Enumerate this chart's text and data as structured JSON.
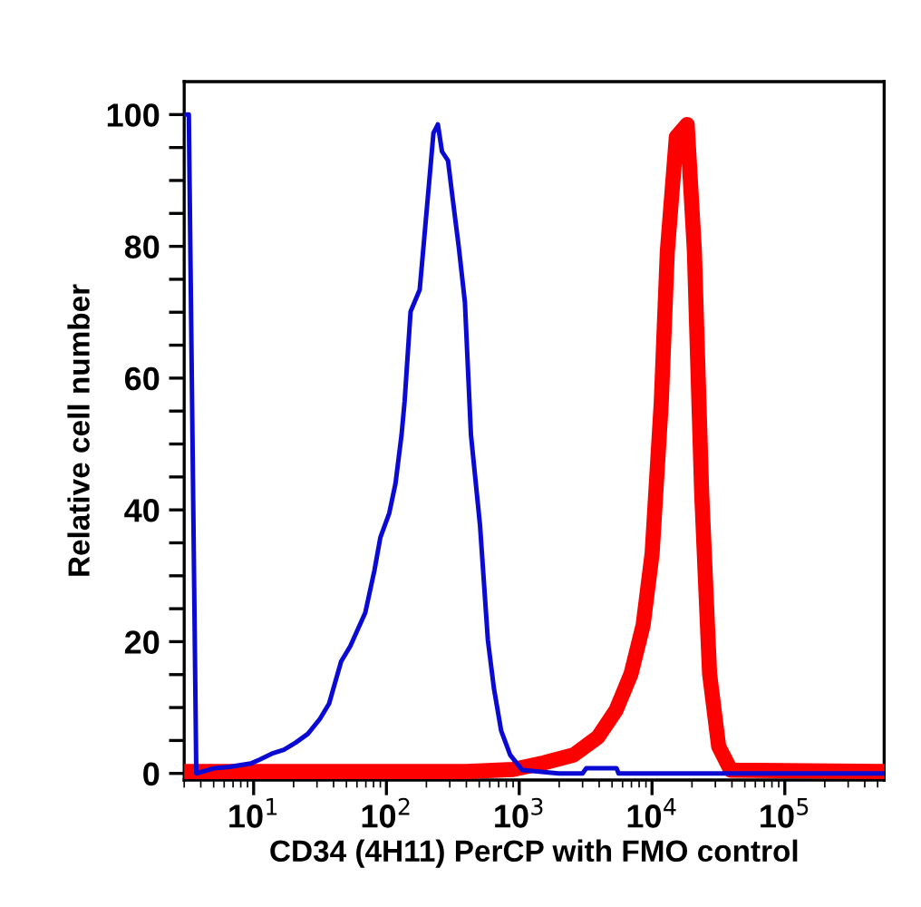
{
  "chart_data": {
    "type": "line",
    "xlabel": "CD34 (4H11) PerCP with FMO control",
    "ylabel": "Relative cell number",
    "log": "x",
    "grid": false,
    "marker": "none",
    "line_style": "solid",
    "xlim": [
      3,
      560000
    ],
    "xticks": [
      {
        "value": 10,
        "label": "10$^{1}$"
      },
      {
        "value": 100,
        "label": "10$^{2}$"
      },
      {
        "value": 1000,
        "label": "10$^{3}$"
      },
      {
        "value": 10000,
        "label": "10$^{4}$"
      },
      {
        "value": 100000,
        "label": "10$^{5}$"
      }
    ],
    "ylim": [
      -1,
      105
    ],
    "yticks": [
      0,
      {
        "value": 5,
        "label": null
      },
      {
        "value": 10,
        "label": null
      },
      {
        "value": 15,
        "label": null
      },
      20,
      {
        "value": 25,
        "label": null
      },
      {
        "value": 30,
        "label": null
      },
      {
        "value": 35,
        "label": null
      },
      40,
      {
        "value": 45,
        "label": null
      },
      {
        "value": 50,
        "label": null
      },
      {
        "value": 55,
        "label": null
      },
      60,
      {
        "value": 65,
        "label": null
      },
      {
        "value": 70,
        "label": null
      },
      {
        "value": 75,
        "label": null
      },
      80,
      {
        "value": 85,
        "label": null
      },
      {
        "value": 90,
        "label": null
      },
      {
        "value": 95,
        "label": null
      },
      100
    ],
    "series": [
      {
        "color": "#0a0ad2",
        "x": [
          3.05,
          3.1,
          3.25,
          3.7,
          5.1,
          6.6,
          9.5,
          11.1,
          13.7,
          16.9,
          20.8,
          25.6,
          31.6,
          37,
          45.6,
          53.4,
          69.3,
          81.2,
          90,
          105,
          117,
          130,
          137,
          152,
          178,
          188,
          208,
          226,
          244,
          262,
          291,
          316,
          351,
          390,
          433,
          507,
          581,
          645,
          731,
          855,
          1055,
          1980,
          3000,
          3200,
          5400,
          5600,
          560000
        ],
        "values": [
          100,
          100,
          100,
          0,
          0.8,
          1,
          1.5,
          2.1,
          3,
          3.6,
          4.7,
          6,
          8.3,
          10.6,
          17,
          19.3,
          24.4,
          30.8,
          35.8,
          39.5,
          44,
          51.4,
          56.4,
          70.1,
          73.4,
          78.8,
          88.9,
          97.2,
          98.5,
          94.4,
          93,
          87.1,
          79.8,
          71.5,
          51.4,
          37.6,
          20.2,
          12.9,
          6.5,
          2.8,
          0.5,
          0,
          0,
          0.8,
          0.8,
          0,
          0
        ]
      },
      {
        "color": "#ff0000",
        "x": [
          3,
          400,
          900,
          1524,
          2570,
          3910,
          5360,
          6950,
          8570,
          10020,
          11740,
          13040,
          15250,
          18400,
          20860,
          23650,
          27140,
          31770,
          39100,
          560000
        ],
        "values": [
          0.3,
          0.3,
          0.6,
          1.6,
          2.8,
          5.5,
          9.6,
          15.1,
          22.5,
          33.4,
          56.3,
          79.2,
          96.6,
          98.5,
          79.2,
          42.6,
          15.1,
          4.1,
          0.5,
          0.3
        ]
      }
    ]
  }
}
